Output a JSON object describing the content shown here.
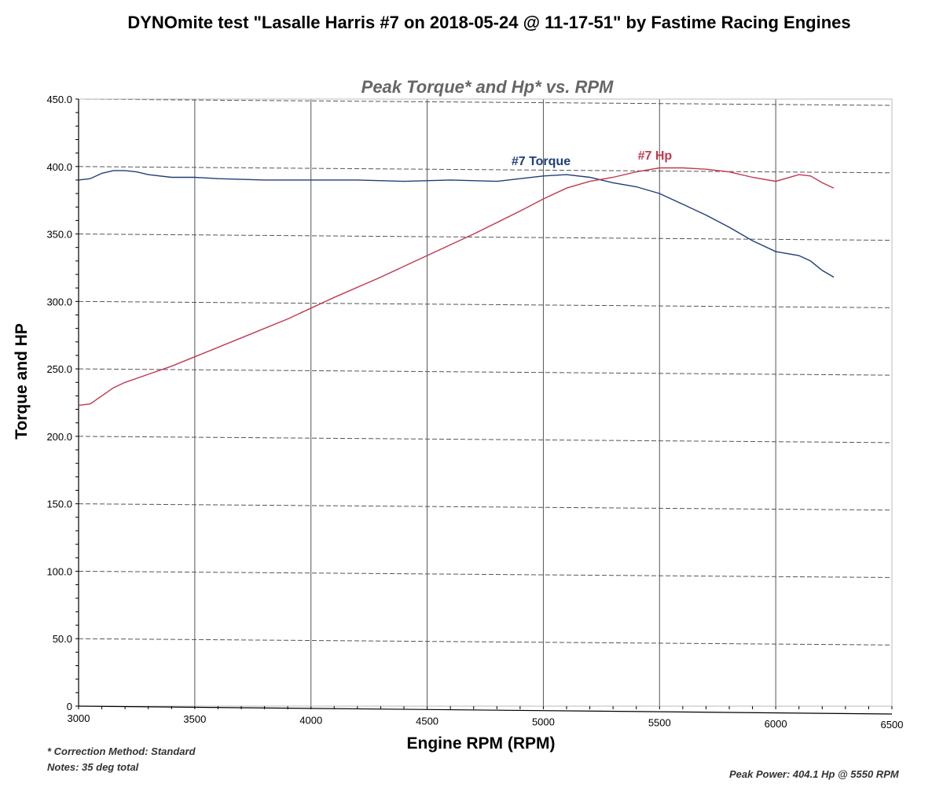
{
  "header": {
    "title": "DYNOmite test \"Lasalle Harris #7 on 2018-05-24 @ 11-17-51\" by Fastime Racing Engines"
  },
  "footer": {
    "correction": "* Correction Method: Standard",
    "notes": "Notes: 35 deg total",
    "peak_power": "Peak Power: 404.1 Hp @ 5550 RPM"
  },
  "colors": {
    "torque": "#1f3f7a",
    "hp": "#c0394f",
    "grid": "#555555",
    "subtitle": "#666666"
  },
  "chart_data": {
    "type": "line",
    "title": "Peak Torque* and Hp* vs. RPM",
    "xlabel": "Engine RPM (RPM)",
    "ylabel": "Torque and HP",
    "xlim": [
      3000,
      6500
    ],
    "ylim": [
      0,
      450
    ],
    "xticks": [
      3000,
      3500,
      4000,
      4500,
      5000,
      5500,
      6000,
      6500
    ],
    "xtick_labels": [
      "3000",
      "3500",
      "4000",
      "4500",
      "5000",
      "5500",
      "6000",
      "6500"
    ],
    "yticks": [
      0,
      50,
      100,
      150,
      200,
      250,
      300,
      350,
      400,
      450
    ],
    "ytick_labels": [
      "0",
      "50.0",
      "100.0",
      "150.0",
      "200.0",
      "250.0",
      "300.0",
      "350.0",
      "400.0",
      "450.0"
    ],
    "grid": true,
    "series": [
      {
        "name": "#7 Torque",
        "x": [
          3000,
          3050,
          3100,
          3150,
          3200,
          3250,
          3300,
          3400,
          3500,
          3600,
          3800,
          4000,
          4200,
          4400,
          4600,
          4800,
          4900,
          5000,
          5100,
          5200,
          5300,
          5400,
          5500,
          5600,
          5700,
          5800,
          5900,
          6000,
          6100,
          6150,
          6200,
          6250
        ],
        "y": [
          390,
          391,
          395,
          397,
          397,
          396,
          394,
          392,
          392,
          391,
          390,
          390,
          390,
          389,
          390,
          389,
          391,
          393,
          394,
          392,
          388,
          385,
          380,
          372,
          364,
          355,
          345,
          337,
          334,
          330,
          323,
          318
        ]
      },
      {
        "name": "#7 Hp",
        "x": [
          3000,
          3050,
          3100,
          3150,
          3200,
          3300,
          3400,
          3500,
          3700,
          3900,
          4100,
          4300,
          4500,
          4700,
          4900,
          5000,
          5100,
          5200,
          5300,
          5400,
          5500,
          5600,
          5700,
          5800,
          5900,
          6000,
          6100,
          6150,
          6200,
          6250
        ],
        "y": [
          223,
          224,
          230,
          236,
          240,
          246,
          252,
          259,
          273,
          287,
          303,
          318,
          334,
          350,
          367,
          376,
          384,
          389,
          392,
          396,
          399,
          399,
          398,
          396,
          392,
          389,
          394,
          393,
          388,
          384
        ]
      }
    ]
  }
}
